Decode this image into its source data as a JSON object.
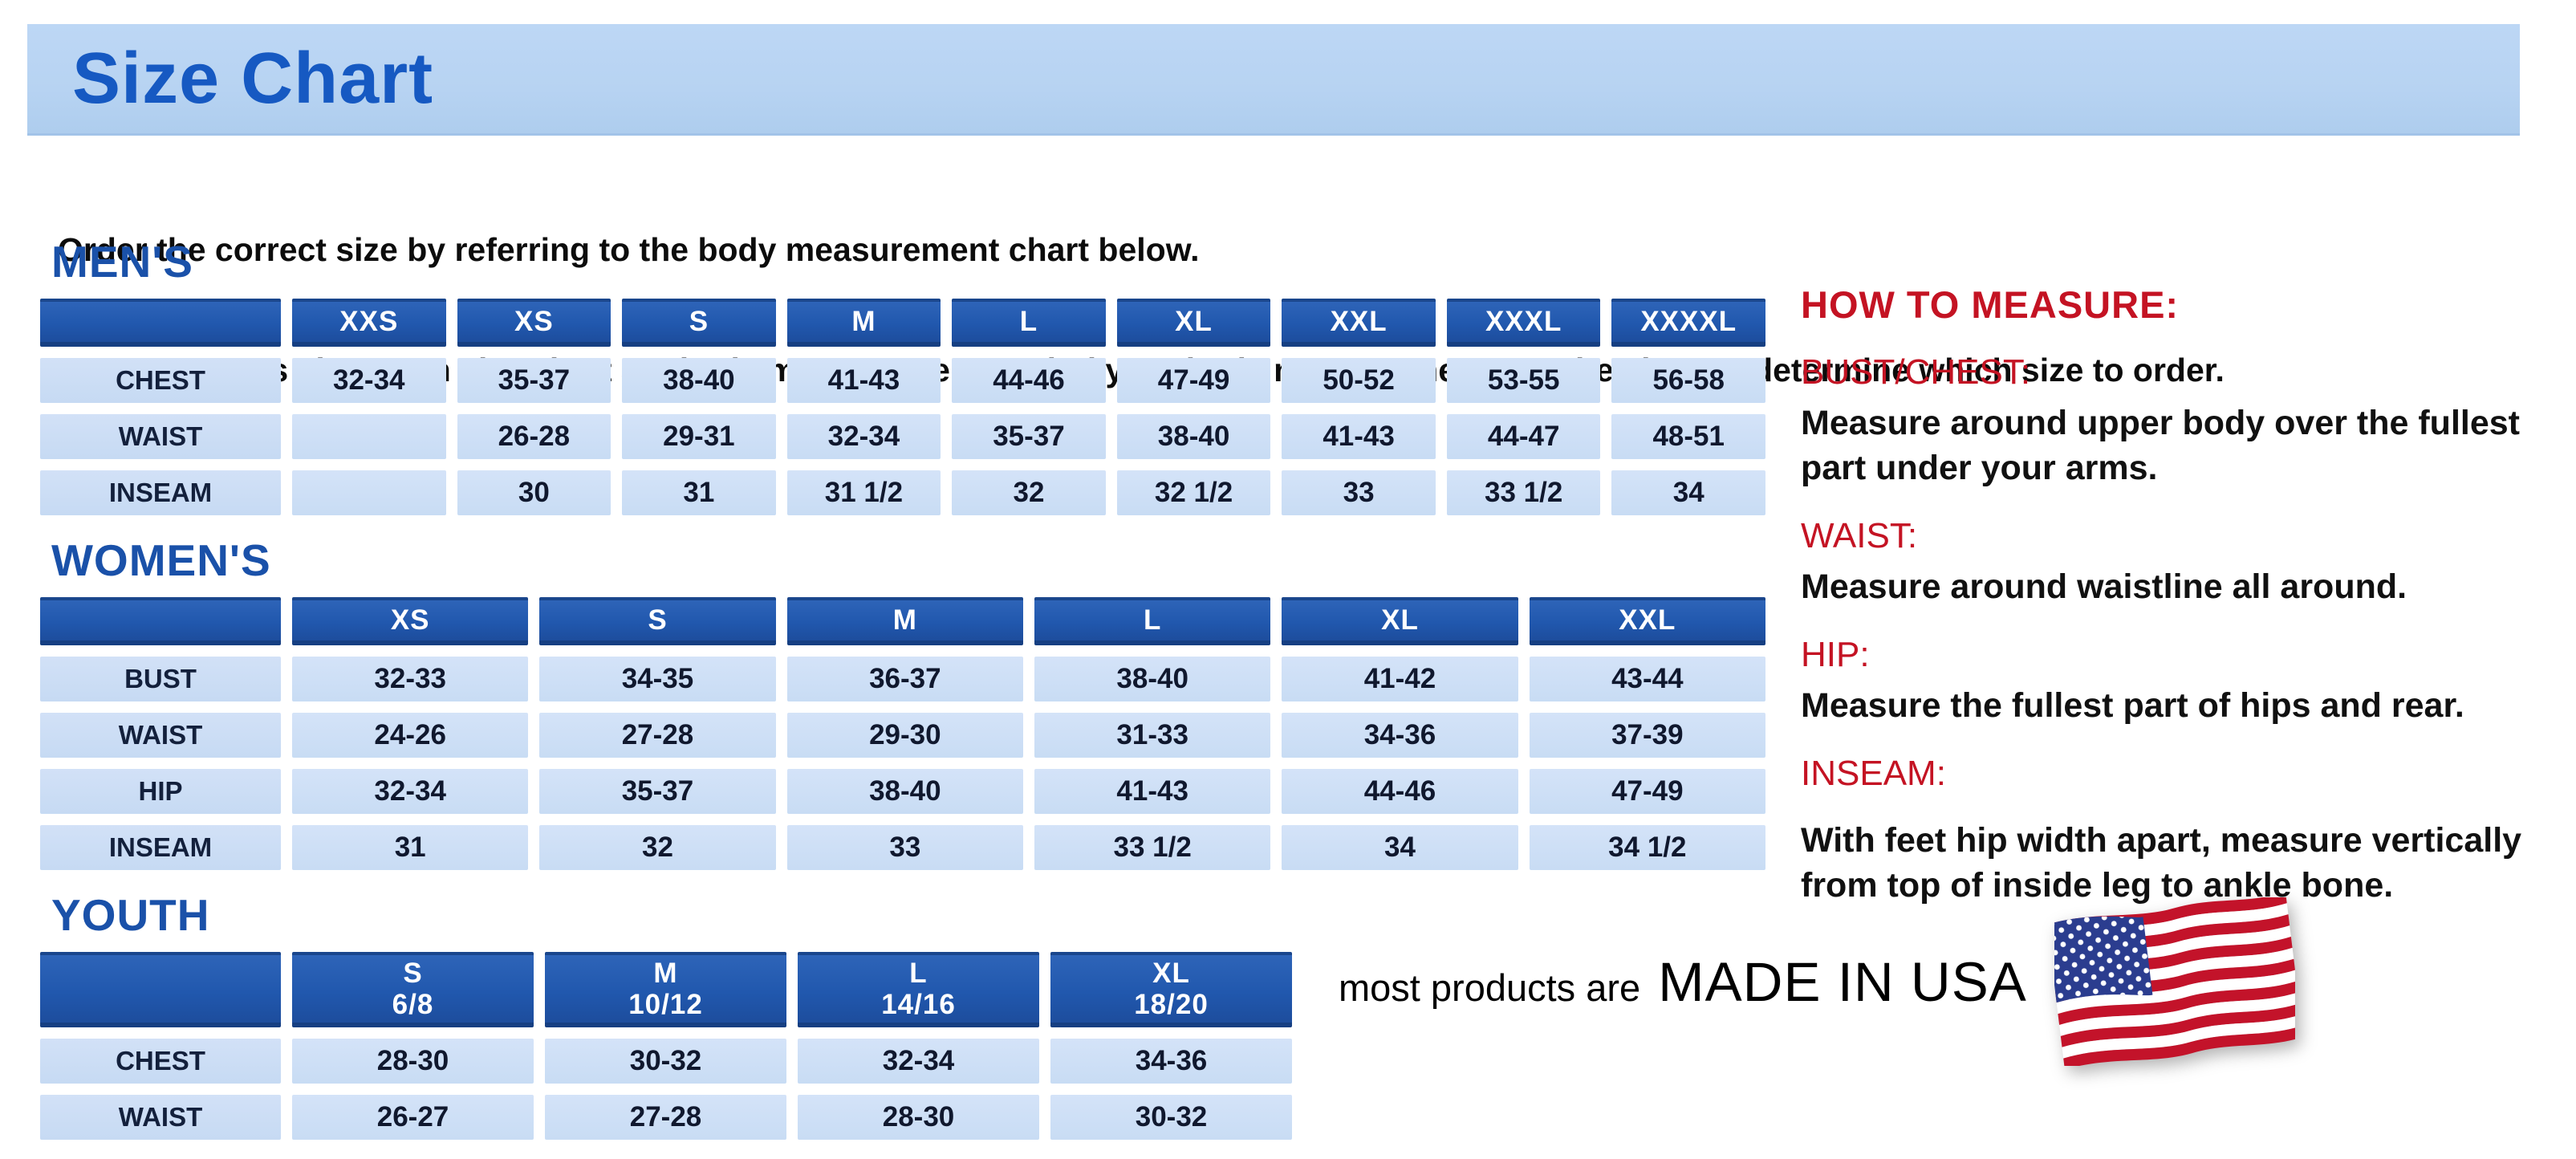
{
  "page": {
    "title": "Size Chart",
    "intro_line1": "Order the correct size by referring to the body measurement chart below.",
    "intro_line2": "Measurements shown on size chart are body measurements.  Find your body measurements on the chart to determine which size to order."
  },
  "tables": {
    "mens": {
      "section_label": "MEN'S",
      "columns": [
        "XXS",
        "XS",
        "S",
        "M",
        "L",
        "XL",
        "XXL",
        "XXXL",
        "XXXXL"
      ],
      "rows": [
        {
          "label": "CHEST",
          "values": [
            "32-34",
            "35-37",
            "38-40",
            "41-43",
            "44-46",
            "47-49",
            "50-52",
            "53-55",
            "56-58"
          ]
        },
        {
          "label": "WAIST",
          "values": [
            "",
            "26-28",
            "29-31",
            "32-34",
            "35-37",
            "38-40",
            "41-43",
            "44-47",
            "48-51"
          ]
        },
        {
          "label": "INSEAM",
          "values": [
            "",
            "30",
            "31",
            "31 1/2",
            "32",
            "32 1/2",
            "33",
            "33 1/2",
            "34"
          ]
        }
      ]
    },
    "womens": {
      "section_label": "WOMEN'S",
      "columns": [
        "XS",
        "S",
        "M",
        "L",
        "XL",
        "XXL"
      ],
      "rows": [
        {
          "label": "BUST",
          "values": [
            "32-33",
            "34-35",
            "36-37",
            "38-40",
            "41-42",
            "43-44"
          ]
        },
        {
          "label": "WAIST",
          "values": [
            "24-26",
            "27-28",
            "29-30",
            "31-33",
            "34-36",
            "37-39"
          ]
        },
        {
          "label": "HIP",
          "values": [
            "32-34",
            "35-37",
            "38-40",
            "41-43",
            "44-46",
            "47-49"
          ]
        },
        {
          "label": "INSEAM",
          "values": [
            "31",
            "32",
            "33",
            "33 1/2",
            "34",
            "34 1/2"
          ]
        }
      ]
    },
    "youth": {
      "section_label": "YOUTH",
      "columns": [
        "S\n6/8",
        "M\n10/12",
        "L\n14/16",
        "XL\n18/20"
      ],
      "rows": [
        {
          "label": "CHEST",
          "values": [
            "28-30",
            "30-32",
            "32-34",
            "34-36"
          ]
        },
        {
          "label": "WAIST",
          "values": [
            "26-27",
            "27-28",
            "28-30",
            "30-32"
          ]
        }
      ]
    }
  },
  "how_to_measure": {
    "heading": "HOW TO MEASURE:",
    "items": [
      {
        "label": "BUST/CHEST:",
        "text": "Measure around upper body over the fullest part under your arms."
      },
      {
        "label": "WAIST:",
        "text": "Measure around waistline all around."
      },
      {
        "label": "HIP:",
        "text": "Measure the fullest part of hips and rear."
      },
      {
        "label": "INSEAM:",
        "text": "With feet hip width apart, measure vertically from top of inside leg to ankle bone."
      }
    ]
  },
  "footer": {
    "prefix": "most products are",
    "emphasis": "MADE IN USA",
    "flag_icon": "usa-flag-icon"
  },
  "colors": {
    "banner_bg": "#b7d3f2",
    "title_blue": "#1659c2",
    "section_heading_blue": "#1a51a9",
    "table_header_bg": "#2158ae",
    "table_cell_bg": "#cbdef5",
    "cell_text": "#10182e",
    "measure_red": "#c41323",
    "flag_red": "#c3132a",
    "flag_blue": "#2b3d8f"
  }
}
